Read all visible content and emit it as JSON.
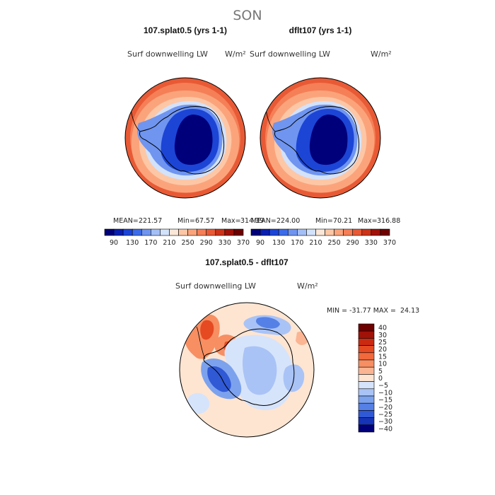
{
  "chart_data": {
    "type": "heatmap",
    "title": "SON",
    "panels": [
      {
        "title": "107.splat0.5 (yrs 1-1)",
        "variable": "Surf downwelling LW",
        "units": "W/m²",
        "stats": {
          "mean_label": "MEAN=",
          "mean": "221.57",
          "min_label": "Min=",
          "min": "67.57",
          "max_label": "Max=",
          "max": "314.39"
        },
        "colorbar_levels": [
          "90",
          "130",
          "170",
          "210",
          "250",
          "290",
          "330",
          "370"
        ]
      },
      {
        "title": "dflt107 (yrs 1-1)",
        "variable": "Surf downwelling LW",
        "units": "W/m²",
        "stats": {
          "mean_label": "MEAN=",
          "mean": "224.00",
          "min_label": "Min=",
          "min": "70.21",
          "max_label": "Max=",
          "max": "316.88"
        },
        "colorbar_levels": [
          "90",
          "130",
          "170",
          "210",
          "250",
          "290",
          "330",
          "370"
        ]
      }
    ],
    "difference": {
      "title": "107.splat0.5 - dflt107",
      "variable": "Surf downwelling LW",
      "units": "W/m²",
      "stats_text": "MIN = -31.77 MAX =  24.13",
      "colorbar_levels": [
        "40",
        "30",
        "25",
        "20",
        "15",
        "10",
        "5",
        "0",
        "−5",
        "−10",
        "−15",
        "−20",
        "−25",
        "−30",
        "−40"
      ]
    },
    "colors": {
      "abs_scale": [
        "#00007a",
        "#0a1fb0",
        "#1c45d6",
        "#3d6ce8",
        "#6f95f0",
        "#a4bff7",
        "#d3e2fb",
        "#fbe7d8",
        "#fdc7a6",
        "#fba47c",
        "#f57f57",
        "#e85a35",
        "#cc3318",
        "#a01207",
        "#6e0000"
      ],
      "diff_scale": [
        "#6e0000",
        "#a01207",
        "#cc2a10",
        "#e54a22",
        "#f26a3c",
        "#f78f62",
        "#fbb593",
        "#fde5d2",
        "#d6e4fb",
        "#a9c3f6",
        "#7ca2ee",
        "#5580e6",
        "#3059d6",
        "#1634b8",
        "#00007a"
      ]
    }
  }
}
